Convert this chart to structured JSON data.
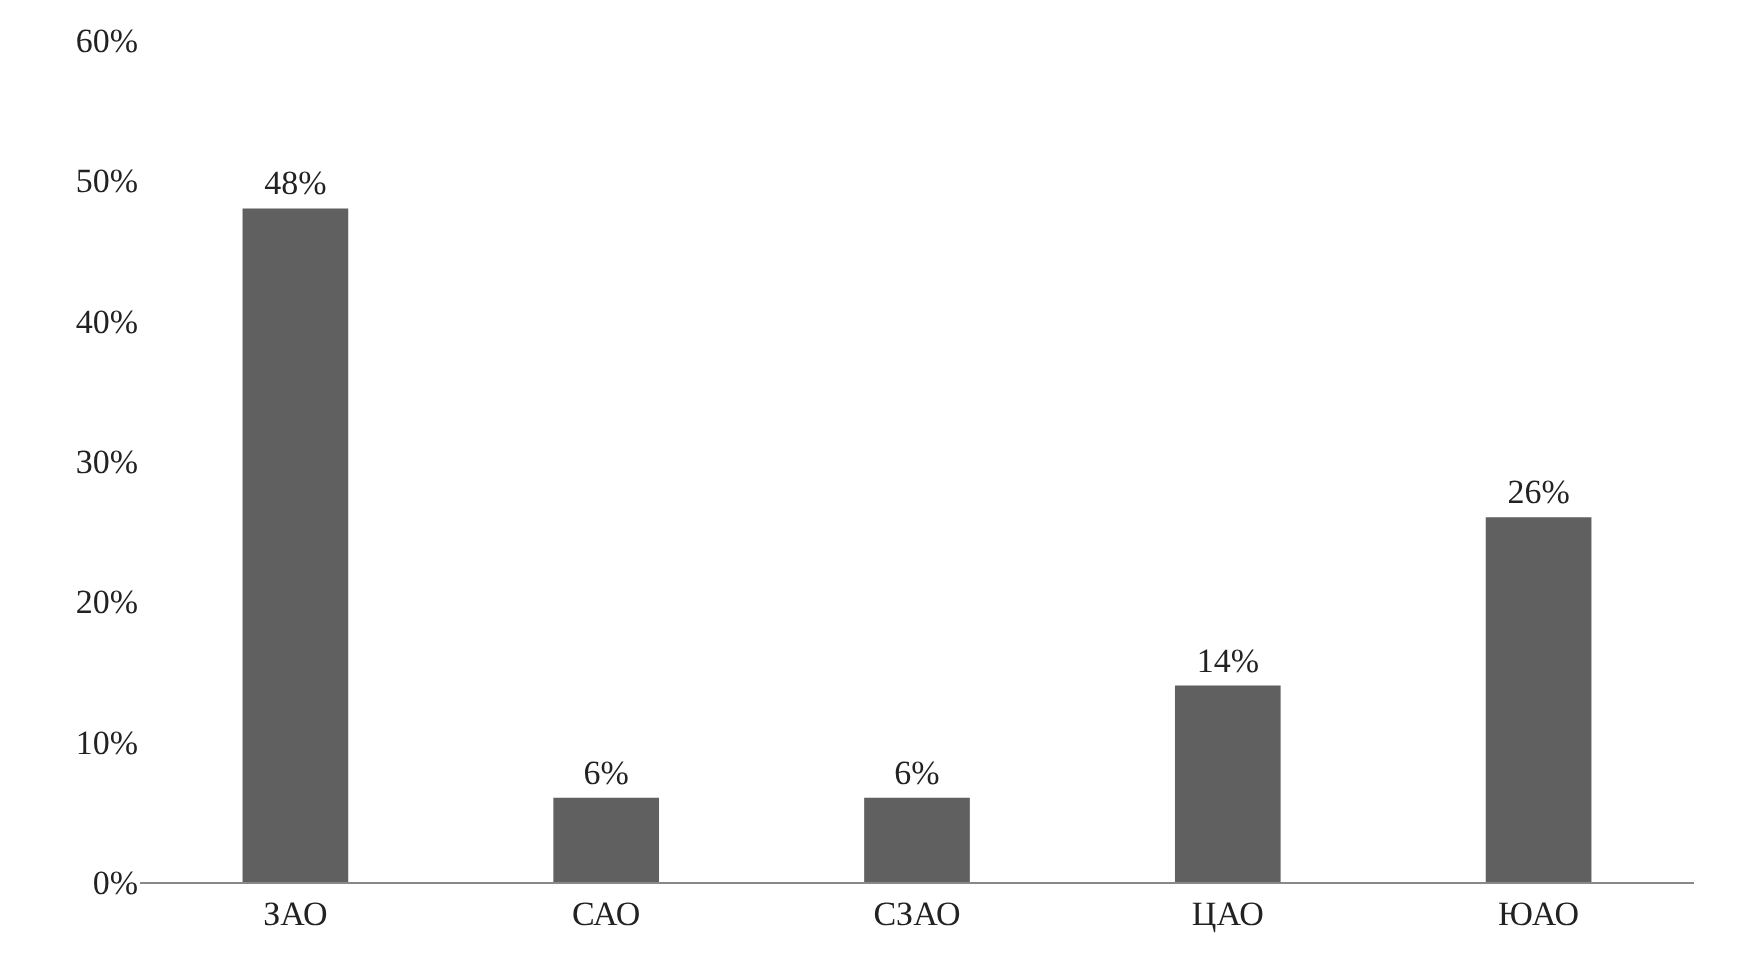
{
  "chart_data": {
    "type": "bar",
    "categories": [
      "ЗАО",
      "САО",
      "СЗАО",
      "ЦАО",
      "ЮАО"
    ],
    "values": [
      48,
      6,
      6,
      14,
      26
    ],
    "value_labels": [
      "48%",
      "6%",
      "6%",
      "14%",
      "26%"
    ],
    "color": "#606060",
    "ylim": [
      0,
      60
    ],
    "yticks": [
      {
        "value": 0,
        "label": "0%"
      },
      {
        "value": 10,
        "label": "10%"
      },
      {
        "value": 20,
        "label": "20%"
      },
      {
        "value": 30,
        "label": "30%"
      },
      {
        "value": 40,
        "label": "40%"
      },
      {
        "value": 50,
        "label": "50%"
      },
      {
        "value": 60,
        "label": "60%"
      }
    ]
  }
}
